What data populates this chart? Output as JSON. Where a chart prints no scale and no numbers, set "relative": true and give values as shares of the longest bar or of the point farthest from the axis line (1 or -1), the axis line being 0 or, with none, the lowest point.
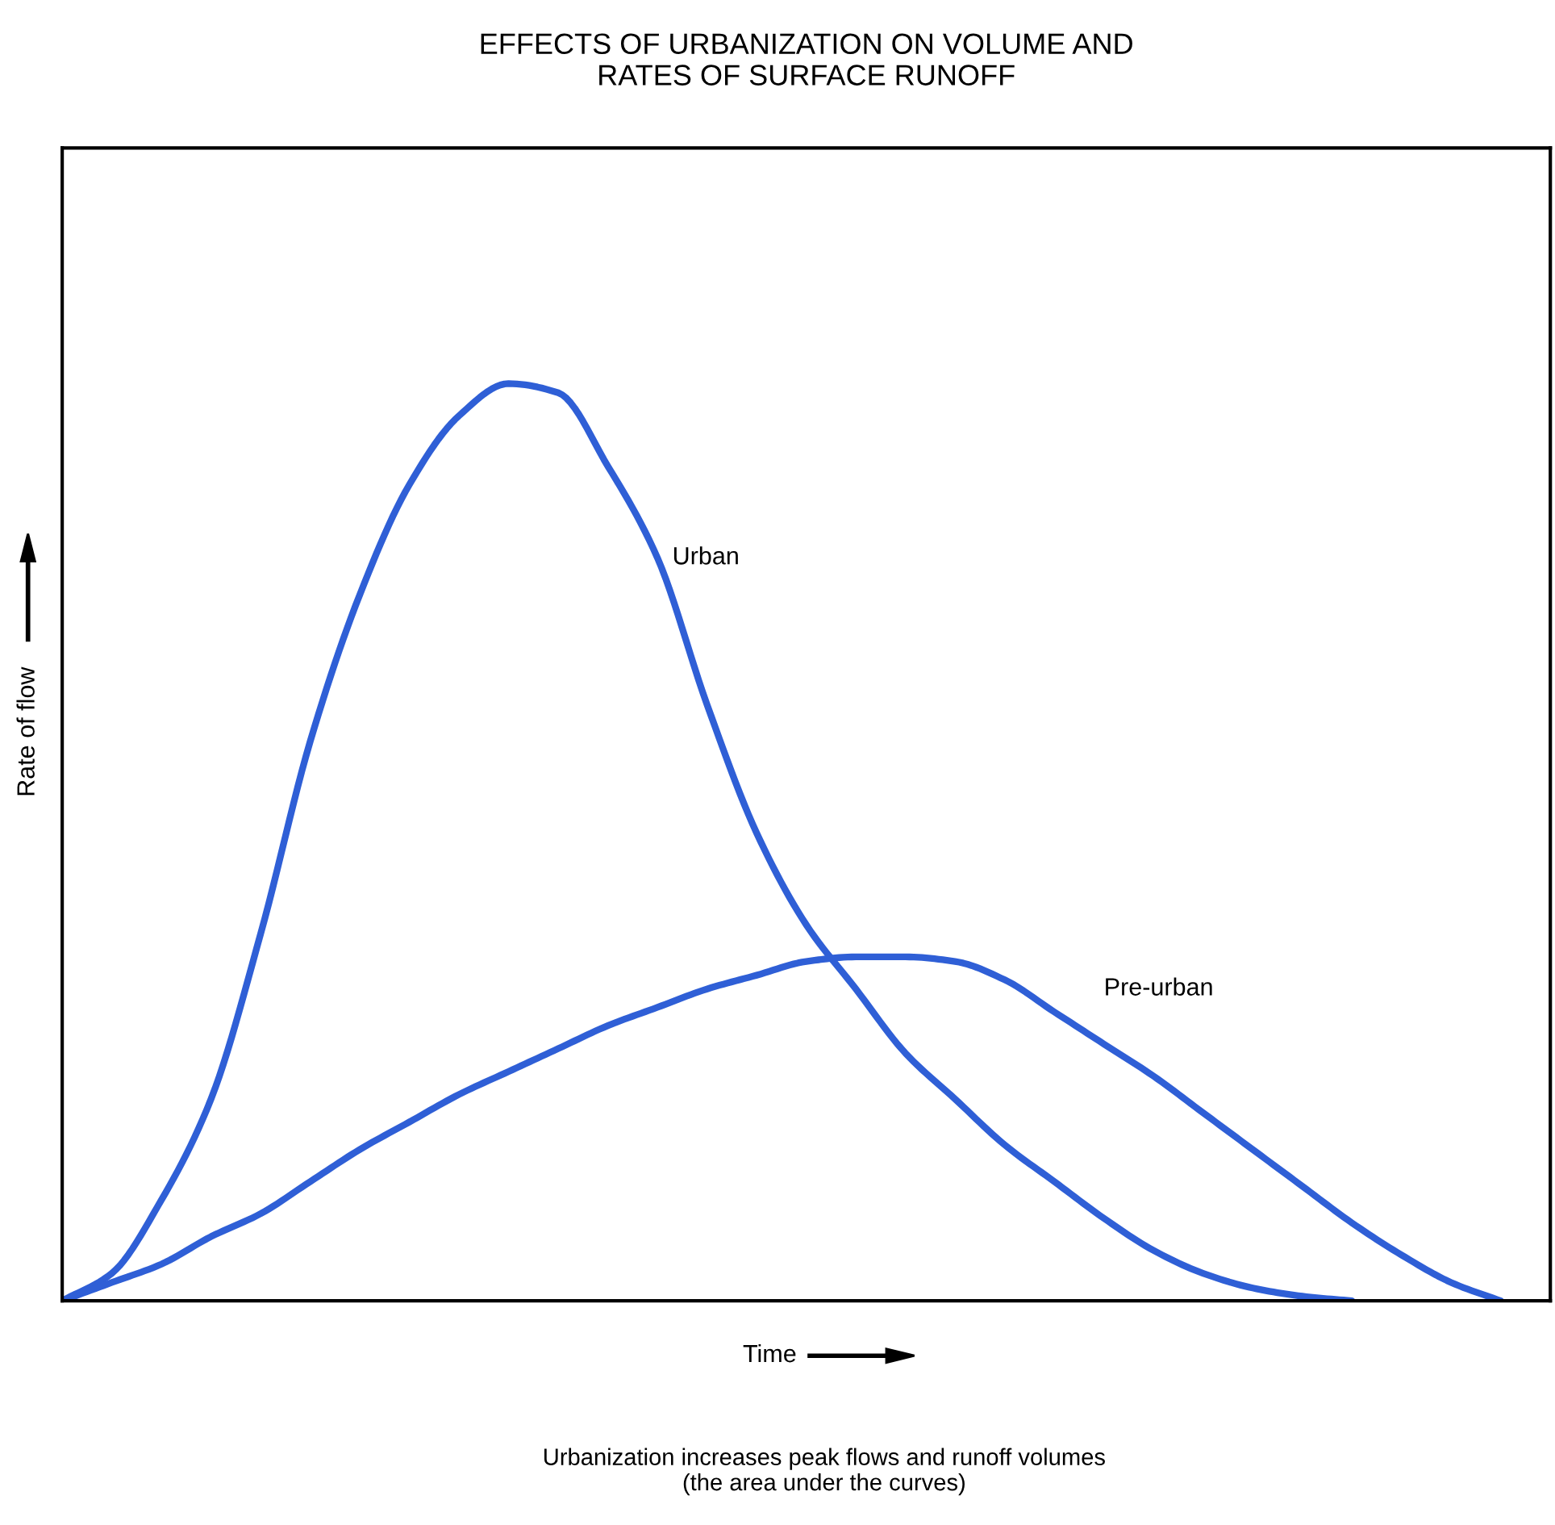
{
  "chart_data": {
    "type": "line",
    "title": "EFFECTS OF URBANIZATION ON VOLUME AND\nRATES OF SURFACE RUNOFF",
    "xlabel": "Time",
    "ylabel": "Rate of flow",
    "relative": true,
    "legend": false,
    "marker": "none",
    "line_style": "solid",
    "categories": [
      null,
      null,
      null,
      null,
      null,
      null,
      null,
      null,
      null,
      null,
      null,
      null,
      null,
      null,
      null,
      null,
      null,
      null,
      null,
      null,
      null,
      null,
      null,
      null,
      null,
      null,
      null,
      null,
      null,
      null,
      null
    ],
    "series": [
      {
        "name": "Urban",
        "color": "#2f5fd6",
        "values": [
          0,
          0.03,
          0.11,
          0.22,
          0.4,
          0.61,
          0.77,
          0.89,
          0.965,
          1,
          0.99,
          0.91,
          0.81,
          0.65,
          0.51,
          0.41,
          0.34,
          0.27,
          0.22,
          0.17,
          0.13,
          0.09,
          0.055,
          0.03,
          0.014,
          0.005,
          0,
          null,
          null,
          null,
          null
        ]
      },
      {
        "name": "Pre-urban",
        "color": "#2f5fd6",
        "values": [
          0,
          0.02,
          0.04,
          0.07,
          0.095,
          0.13,
          0.165,
          0.195,
          0.225,
          0.25,
          0.275,
          0.3,
          0.32,
          0.34,
          0.355,
          0.37,
          0.375,
          0.375,
          0.37,
          0.35,
          0.315,
          0.28,
          0.245,
          0.205,
          0.165,
          0.125,
          0.085,
          0.05,
          0.02,
          0,
          null
        ]
      }
    ],
    "annotations": [
      "Urbanization increases peak flows and runoff volumes\n(the area under the curves)"
    ]
  }
}
